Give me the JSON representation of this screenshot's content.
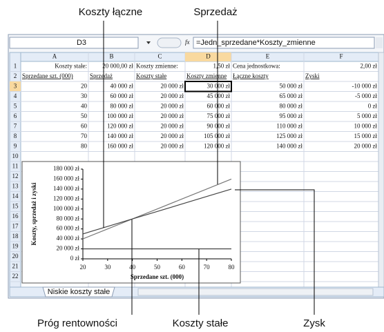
{
  "callouts": {
    "total_costs": "Koszty łączne",
    "sales": "Sprzedaż",
    "break_even": "Próg rentowności",
    "fixed_costs": "Koszty stałe",
    "profit": "Zysk"
  },
  "name_box": "D3",
  "fx_label": "fx",
  "formula": "=Jedn_sprzedane*Koszty_zmienne",
  "columns": [
    "A",
    "B",
    "C",
    "D",
    "E",
    "F"
  ],
  "row_numbers": [
    1,
    2,
    3,
    4,
    5,
    6,
    7,
    8,
    9,
    10,
    11,
    12,
    13,
    14,
    15,
    16,
    17,
    18,
    19,
    20,
    21,
    22
  ],
  "rows": [
    [
      "Koszty stałe:",
      "20 000,00 zł",
      "Koszty zmienne:",
      "1,50 zł",
      "Cena jednostkowa:",
      "2,00 zł"
    ],
    [
      "Sprzedane szt. (000)",
      "Sprzedaż",
      "Koszty stałe",
      "Koszty zmienne",
      "Łączne koszty",
      "Zyski"
    ],
    [
      20,
      "40 000 zł",
      "20 000 zł",
      "30 000 zł",
      "50 000 zł",
      "-10 000 zł"
    ],
    [
      30,
      "60 000 zł",
      "20 000 zł",
      "45 000 zł",
      "65 000 zł",
      "-5 000 zł"
    ],
    [
      40,
      "80 000 zł",
      "20 000 zł",
      "60 000 zł",
      "80 000 zł",
      "0 zł"
    ],
    [
      50,
      "100 000 zł",
      "20 000 zł",
      "75 000 zł",
      "95 000 zł",
      "5 000 zł"
    ],
    [
      60,
      "120 000 zł",
      "20 000 zł",
      "90 000 zł",
      "110 000 zł",
      "10 000 zł"
    ],
    [
      70,
      "140 000 zł",
      "20 000 zł",
      "105 000 zł",
      "125 000 zł",
      "15 000 zł"
    ],
    [
      80,
      "160 000 zł",
      "20 000 zł",
      "120 000 zł",
      "140 000 zł",
      "20 000 zł"
    ]
  ],
  "sheet_tab": "Niskie koszty stałe",
  "chart": {
    "type": "line",
    "x_label": "Sprzedane szt. (000)",
    "y_label": "Koszty, sprzedaż i zyski",
    "x": [
      20,
      30,
      40,
      50,
      60,
      70,
      80
    ],
    "series": [
      {
        "color": "#777777",
        "values": [
          40000,
          60000,
          80000,
          100000,
          120000,
          140000,
          160000
        ]
      },
      {
        "color": "#444444",
        "values": [
          50000,
          65000,
          80000,
          95000,
          110000,
          125000,
          140000
        ]
      },
      {
        "color": "#333333",
        "values": [
          20000,
          20000,
          20000,
          20000,
          20000,
          20000,
          20000
        ]
      }
    ],
    "xlim": [
      20,
      80
    ],
    "ylim": [
      0,
      180000
    ],
    "xticks": [
      20,
      30,
      40,
      50,
      60,
      70,
      80
    ],
    "yticks": [
      {
        "value": 0,
        "label": "0 zł"
      },
      {
        "value": 20000,
        "label": "20 000 zł"
      },
      {
        "value": 40000,
        "label": "40 000 zł"
      },
      {
        "value": 60000,
        "label": "60 000 zł"
      },
      {
        "value": 80000,
        "label": "80 000 zł"
      },
      {
        "value": 100000,
        "label": "100 000 zł"
      },
      {
        "value": 120000,
        "label": "120 000 zł"
      },
      {
        "value": 140000,
        "label": "140 000 zł"
      },
      {
        "value": 160000,
        "label": "160 000 zł"
      },
      {
        "value": 180000,
        "label": "180 000 zł"
      }
    ]
  }
}
